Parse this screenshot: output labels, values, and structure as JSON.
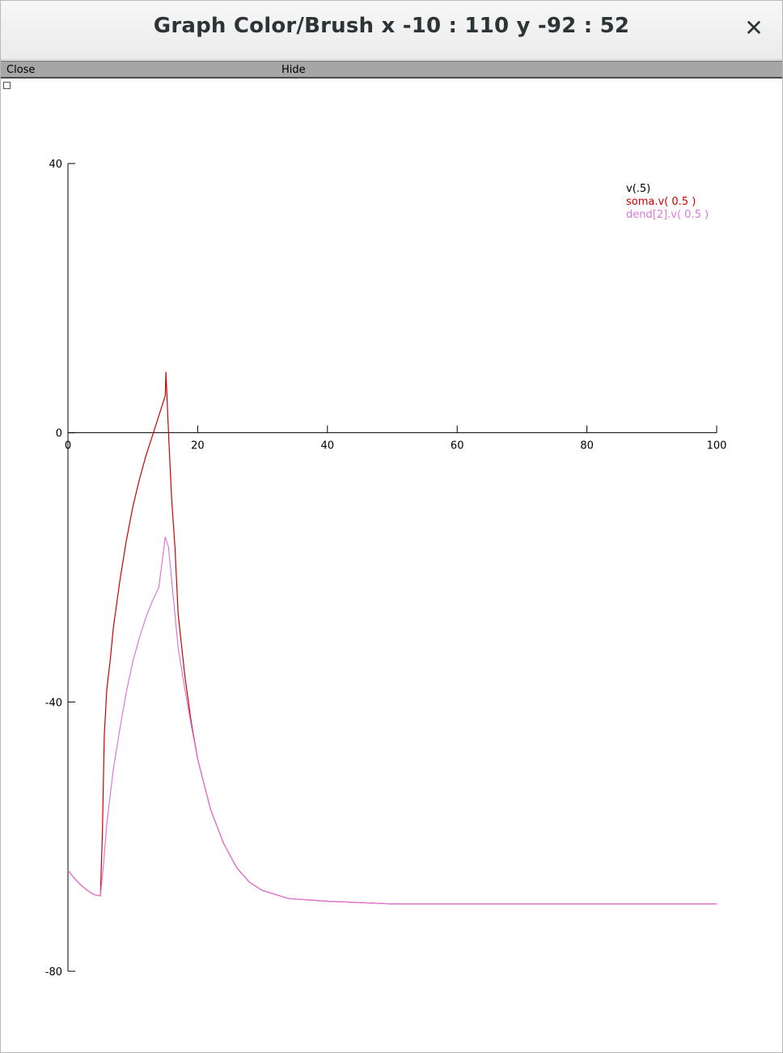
{
  "window": {
    "title": "Graph Color/Brush x -10 : 110  y -92 : 52",
    "close_glyph": "✕"
  },
  "menu": {
    "close_label": "Close",
    "hide_label": "Hide"
  },
  "chart_data": {
    "type": "line",
    "xlim": [
      0,
      100
    ],
    "ylim": [
      -80,
      40
    ],
    "x_ticks": [
      0,
      20,
      40,
      60,
      80,
      100
    ],
    "y_ticks": [
      40,
      0,
      -40,
      -80
    ],
    "x_tick_labels": [
      "0",
      "20",
      "40",
      "60",
      "80",
      "100"
    ],
    "y_tick_labels": [
      "40",
      "0",
      "-40",
      "-80"
    ],
    "legend_position": "top-right",
    "legend": [
      {
        "label": "v(.5)",
        "color": "#000000"
      },
      {
        "label": "soma.v( 0.5 )",
        "color": "#cc0000"
      },
      {
        "label": "dend[2].v( 0.5 )",
        "color": "#dd77dd"
      }
    ],
    "series": [
      {
        "name": "soma.v( 0.5 )",
        "color": "#cc0000",
        "points": [
          [
            0,
            -65
          ],
          [
            1,
            -66.2
          ],
          [
            2,
            -67.2
          ],
          [
            3,
            -68
          ],
          [
            4,
            -68.6
          ],
          [
            5,
            -68.8
          ],
          [
            5.3,
            -60
          ],
          [
            5.6,
            -45
          ],
          [
            6,
            -38
          ],
          [
            6.5,
            -34
          ],
          [
            7,
            -29
          ],
          [
            8,
            -22
          ],
          [
            9,
            -16
          ],
          [
            10,
            -11
          ],
          [
            11,
            -7
          ],
          [
            12,
            -3.5
          ],
          [
            13,
            -0.5
          ],
          [
            14,
            2.5
          ],
          [
            15,
            5.5
          ],
          [
            15.1,
            9
          ],
          [
            15.6,
            -2
          ],
          [
            16,
            -10
          ],
          [
            16.5,
            -17
          ],
          [
            17,
            -27
          ],
          [
            18,
            -36
          ],
          [
            19,
            -43
          ],
          [
            20,
            -48.5
          ],
          [
            22,
            -56
          ],
          [
            24,
            -61
          ],
          [
            26,
            -64.6
          ],
          [
            28,
            -66.8
          ],
          [
            30,
            -68
          ],
          [
            34,
            -69.2
          ],
          [
            40,
            -69.6
          ],
          [
            50,
            -70
          ],
          [
            60,
            -70
          ],
          [
            80,
            -70
          ],
          [
            100,
            -70
          ]
        ]
      },
      {
        "name": "dend[2].v( 0.5 )",
        "color": "#dd77dd",
        "points": [
          [
            0,
            -65
          ],
          [
            1,
            -66.2
          ],
          [
            2,
            -67.2
          ],
          [
            3,
            -68
          ],
          [
            4,
            -68.6
          ],
          [
            5,
            -68.8
          ],
          [
            5.5,
            -64
          ],
          [
            6,
            -58
          ],
          [
            7,
            -50
          ],
          [
            8,
            -44
          ],
          [
            9,
            -38.5
          ],
          [
            10,
            -34
          ],
          [
            11,
            -30.5
          ],
          [
            12,
            -27.5
          ],
          [
            13,
            -25
          ],
          [
            14,
            -23
          ],
          [
            15,
            -15.5
          ],
          [
            15.5,
            -17
          ],
          [
            16,
            -22
          ],
          [
            16.5,
            -27
          ],
          [
            17,
            -32
          ],
          [
            18,
            -38
          ],
          [
            19,
            -43.5
          ],
          [
            20,
            -48.5
          ],
          [
            22,
            -56
          ],
          [
            24,
            -61
          ],
          [
            26,
            -64.6
          ],
          [
            28,
            -66.8
          ],
          [
            30,
            -68
          ],
          [
            34,
            -69.2
          ],
          [
            40,
            -69.6
          ],
          [
            50,
            -70
          ],
          [
            60,
            -70
          ],
          [
            80,
            -70
          ],
          [
            100,
            -70
          ]
        ]
      }
    ]
  }
}
